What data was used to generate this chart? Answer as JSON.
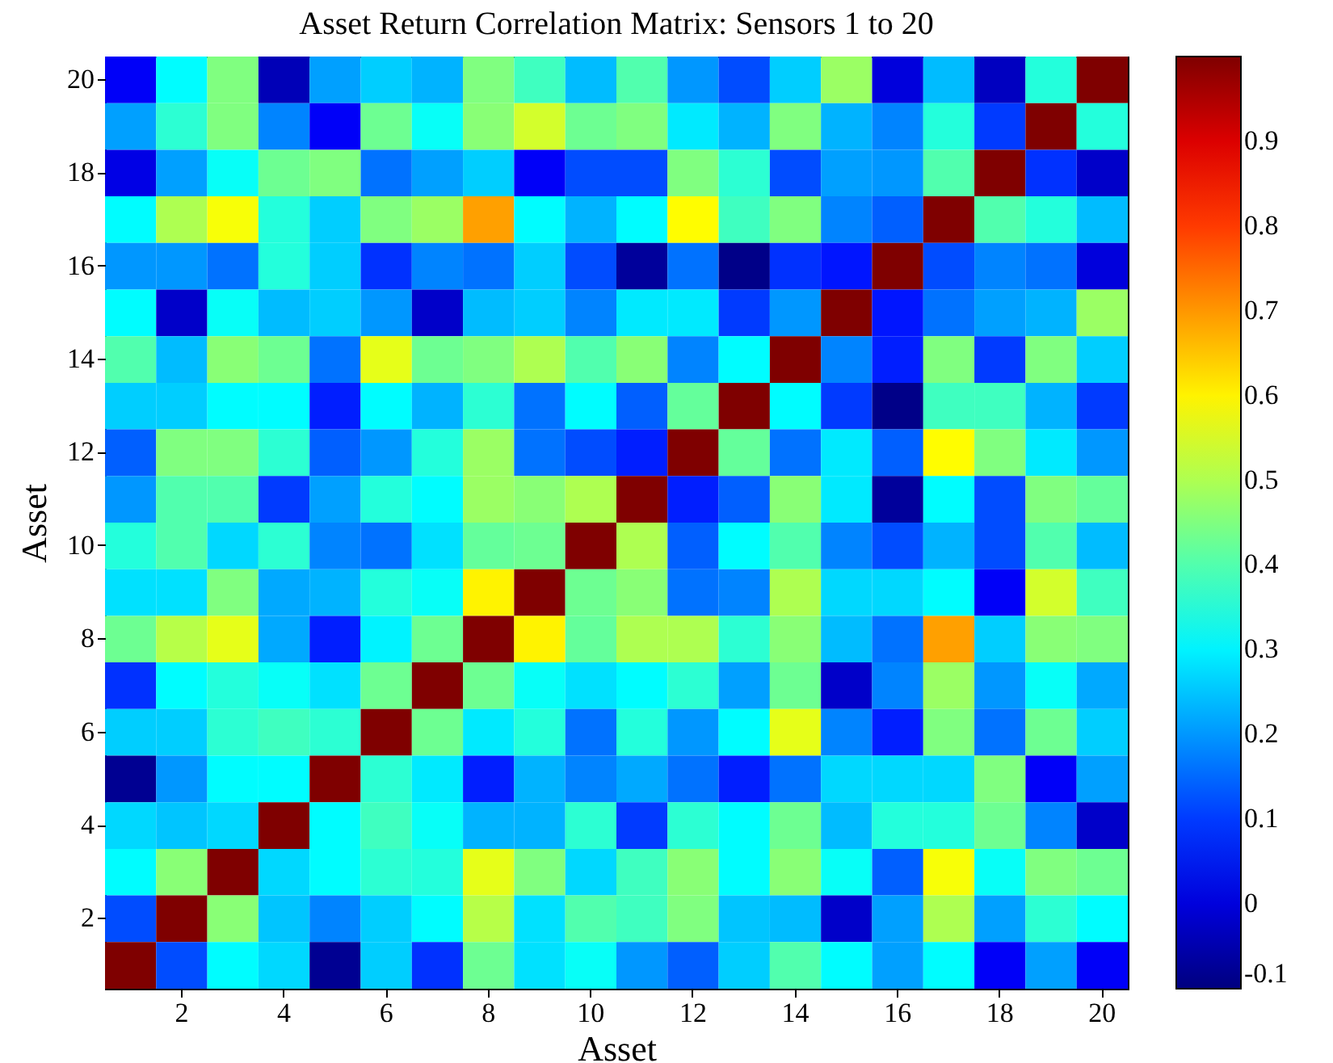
{
  "chart_data": {
    "type": "heatmap",
    "title": "Asset Return Correlation Matrix: Sensors 1 to 20",
    "xlabel": "Asset",
    "ylabel": "Asset",
    "categories": [
      null,
      "2",
      null,
      "4",
      null,
      "6",
      null,
      "8",
      null,
      "10",
      null,
      "12",
      null,
      "14",
      null,
      "16",
      null,
      "18",
      null,
      "20"
    ],
    "y_categories": [
      "20",
      null,
      "18",
      null,
      "16",
      null,
      "14",
      null,
      "12",
      null,
      "10",
      null,
      "8",
      null,
      "6",
      null,
      "4",
      null,
      "2",
      null
    ],
    "cells": [
      [
        0.03,
        0.31,
        0.45,
        -0.04,
        0.21,
        0.26,
        0.23,
        0.45,
        0.38,
        0.24,
        0.4,
        0.2,
        0.12,
        0.26,
        0.48,
        0.0,
        0.24,
        -0.03,
        0.35,
        1
      ],
      [
        0.21,
        0.36,
        0.45,
        0.18,
        0.03,
        0.43,
        0.32,
        0.46,
        0.54,
        0.43,
        0.45,
        0.29,
        0.23,
        0.45,
        0.23,
        0.18,
        0.35,
        0.1,
        1,
        0.35
      ],
      [
        0.01,
        0.21,
        0.32,
        0.43,
        0.45,
        0.16,
        0.21,
        0.26,
        0.03,
        0.12,
        0.12,
        0.45,
        0.36,
        0.12,
        0.21,
        0.2,
        0.4,
        1,
        0.09,
        -0.02
      ],
      [
        0.31,
        0.5,
        0.58,
        0.35,
        0.26,
        0.45,
        0.48,
        0.69,
        0.31,
        0.23,
        0.31,
        0.59,
        0.38,
        0.45,
        0.18,
        0.14,
        1,
        0.4,
        0.35,
        0.24
      ],
      [
        0.2,
        0.2,
        0.16,
        0.35,
        0.26,
        0.09,
        0.18,
        0.16,
        0.26,
        0.12,
        -0.07,
        0.16,
        -0.09,
        0.09,
        0.06,
        1,
        0.12,
        0.18,
        0.16,
        0.0
      ],
      [
        0.31,
        -0.02,
        0.32,
        0.24,
        0.26,
        0.2,
        -0.02,
        0.24,
        0.26,
        0.18,
        0.29,
        0.29,
        0.1,
        0.2,
        1,
        0.06,
        0.16,
        0.21,
        0.23,
        0.48
      ],
      [
        0.4,
        0.24,
        0.46,
        0.43,
        0.16,
        0.56,
        0.43,
        0.45,
        0.5,
        0.4,
        0.46,
        0.18,
        0.31,
        1,
        0.18,
        0.07,
        0.45,
        0.1,
        0.45,
        0.26
      ],
      [
        0.26,
        0.26,
        0.31,
        0.31,
        0.07,
        0.31,
        0.23,
        0.36,
        0.16,
        0.31,
        0.14,
        0.42,
        1,
        0.31,
        0.1,
        -0.09,
        0.38,
        0.38,
        0.23,
        0.1
      ],
      [
        0.14,
        0.45,
        0.45,
        0.36,
        0.14,
        0.2,
        0.35,
        0.48,
        0.16,
        0.12,
        0.07,
        1,
        0.42,
        0.16,
        0.29,
        0.14,
        0.59,
        0.45,
        0.29,
        0.2
      ],
      [
        0.2,
        0.4,
        0.4,
        0.1,
        0.21,
        0.35,
        0.31,
        0.48,
        0.46,
        0.5,
        1,
        0.07,
        0.14,
        0.46,
        0.29,
        -0.07,
        0.31,
        0.12,
        0.45,
        0.42
      ],
      [
        0.35,
        0.4,
        0.27,
        0.36,
        0.18,
        0.16,
        0.28,
        0.42,
        0.43,
        1,
        0.5,
        0.14,
        0.31,
        0.4,
        0.18,
        0.12,
        0.23,
        0.12,
        0.4,
        0.24
      ],
      [
        0.28,
        0.28,
        0.45,
        0.22,
        0.23,
        0.35,
        0.32,
        0.6,
        1,
        0.43,
        0.46,
        0.16,
        0.18,
        0.5,
        0.27,
        0.27,
        0.31,
        0.03,
        0.54,
        0.38
      ],
      [
        0.43,
        0.51,
        0.56,
        0.22,
        0.07,
        0.3,
        0.43,
        1,
        0.6,
        0.42,
        0.5,
        0.5,
        0.36,
        0.46,
        0.24,
        0.16,
        0.69,
        0.26,
        0.46,
        0.45
      ],
      [
        0.09,
        0.31,
        0.35,
        0.32,
        0.28,
        0.43,
        1,
        0.43,
        0.32,
        0.28,
        0.31,
        0.36,
        0.21,
        0.43,
        -0.02,
        0.18,
        0.48,
        0.2,
        0.32,
        0.22
      ],
      [
        0.26,
        0.26,
        0.36,
        0.38,
        0.36,
        1,
        0.43,
        0.29,
        0.35,
        0.16,
        0.35,
        0.2,
        0.31,
        0.56,
        0.18,
        0.07,
        0.45,
        0.16,
        0.43,
        0.26
      ],
      [
        -0.08,
        0.2,
        0.31,
        0.31,
        1,
        0.36,
        0.29,
        0.07,
        0.23,
        0.18,
        0.22,
        0.16,
        0.07,
        0.16,
        0.27,
        0.27,
        0.27,
        0.45,
        0.03,
        0.21
      ],
      [
        0.27,
        0.25,
        0.27,
        1,
        0.31,
        0.38,
        0.32,
        0.23,
        0.23,
        0.36,
        0.1,
        0.36,
        0.31,
        0.43,
        0.24,
        0.35,
        0.35,
        0.43,
        0.18,
        -0.02
      ],
      [
        0.31,
        0.46,
        1,
        0.27,
        0.31,
        0.36,
        0.35,
        0.56,
        0.45,
        0.27,
        0.38,
        0.46,
        0.31,
        0.46,
        0.32,
        0.14,
        0.58,
        0.32,
        0.45,
        0.43
      ],
      [
        0.12,
        1,
        0.46,
        0.25,
        0.18,
        0.26,
        0.31,
        0.51,
        0.28,
        0.4,
        0.38,
        0.45,
        0.25,
        0.24,
        -0.02,
        0.21,
        0.5,
        0.21,
        0.36,
        0.31
      ],
      [
        1,
        0.12,
        0.31,
        0.27,
        -0.08,
        0.26,
        0.09,
        0.43,
        0.28,
        0.32,
        0.2,
        0.14,
        0.26,
        0.4,
        0.31,
        0.21,
        0.31,
        0.03,
        0.21,
        0.03
      ]
    ],
    "clim": [
      -0.1,
      1
    ],
    "cticks": [
      -0.1,
      0,
      0.1,
      0.2,
      0.3,
      0.4,
      0.5,
      0.6,
      0.7,
      0.8,
      0.9
    ]
  }
}
